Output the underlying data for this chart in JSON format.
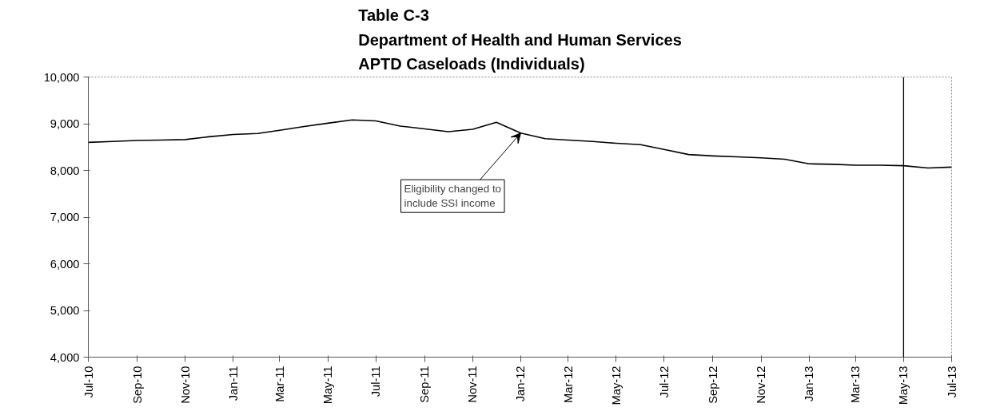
{
  "chart_data": {
    "type": "line",
    "title": "Table C-3\nDepartment of Health and Human Services\nAPTD Caseloads (Individuals)",
    "x": [
      "2010-07",
      "2010-08",
      "2010-09",
      "2010-10",
      "2010-11",
      "2010-12",
      "2011-01",
      "2011-02",
      "2011-03",
      "2011-04",
      "2011-05",
      "2011-06",
      "2011-07",
      "2011-08",
      "2011-09",
      "2011-10",
      "2011-11",
      "2011-12",
      "2012-01",
      "2012-02",
      "2012-03",
      "2012-04",
      "2012-05",
      "2012-06",
      "2012-07",
      "2012-08",
      "2012-09",
      "2012-10",
      "2012-11",
      "2012-12",
      "2013-01",
      "2013-02",
      "2013-03",
      "2013-04",
      "2013-05",
      "2013-06",
      "2013-07"
    ],
    "series": [
      {
        "color": "#000000",
        "values": [
          8600,
          8620,
          8640,
          8650,
          8660,
          8720,
          8770,
          8790,
          8860,
          8940,
          9010,
          9080,
          9060,
          8950,
          8890,
          8830,
          8880,
          9030,
          8800,
          8680,
          8650,
          8620,
          8580,
          8550,
          8450,
          8340,
          8310,
          8290,
          8270,
          8240,
          8140,
          8130,
          8110,
          8110,
          8100,
          8050,
          8070
        ]
      }
    ],
    "xlim": [
      "2010-07",
      "2013-07"
    ],
    "xticks": [
      {
        "value": "2010-07",
        "label": "Jul-10"
      },
      {
        "value": "2010-09",
        "label": "Sep-10"
      },
      {
        "value": "2010-11",
        "label": "Nov-10"
      },
      {
        "value": "2011-01",
        "label": "Jan-11"
      },
      {
        "value": "2011-03",
        "label": "Mar-11"
      },
      {
        "value": "2011-05",
        "label": "May-11"
      },
      {
        "value": "2011-07",
        "label": "Jul-11"
      },
      {
        "value": "2011-09",
        "label": "Sep-11"
      },
      {
        "value": "2011-11",
        "label": "Nov-11"
      },
      {
        "value": "2012-01",
        "label": "Jan-12"
      },
      {
        "value": "2012-03",
        "label": "Mar-12"
      },
      {
        "value": "2012-05",
        "label": "May-12"
      },
      {
        "value": "2012-07",
        "label": "Jul-12"
      },
      {
        "value": "2012-09",
        "label": "Sep-12"
      },
      {
        "value": "2012-11",
        "label": "Nov-12"
      },
      {
        "value": "2013-01",
        "label": "Jan-13"
      },
      {
        "value": "2013-03",
        "label": "Mar-13"
      },
      {
        "value": "2013-05",
        "label": "May-13"
      },
      {
        "value": "2013-07",
        "label": "Jul-13"
      }
    ],
    "ylim": [
      4000,
      10000
    ],
    "yticks": [
      {
        "value": 4000,
        "label": "4,000"
      },
      {
        "value": 5000,
        "label": "5,000"
      },
      {
        "value": 6000,
        "label": "6,000"
      },
      {
        "value": 7000,
        "label": "7,000"
      },
      {
        "value": 8000,
        "label": "8,000"
      },
      {
        "value": 9000,
        "label": "9,000"
      },
      {
        "value": 10000,
        "label": "10,000"
      }
    ],
    "ref_lines": [
      {
        "axis": "x",
        "value": "2013-05",
        "color": "#000000"
      }
    ],
    "annotations": [
      {
        "text": "Eligibility changed to\ninclude SSI income",
        "x": "2012-01",
        "y": 8800
      }
    ],
    "grid": false,
    "marker": "none",
    "line_style": "solid"
  }
}
